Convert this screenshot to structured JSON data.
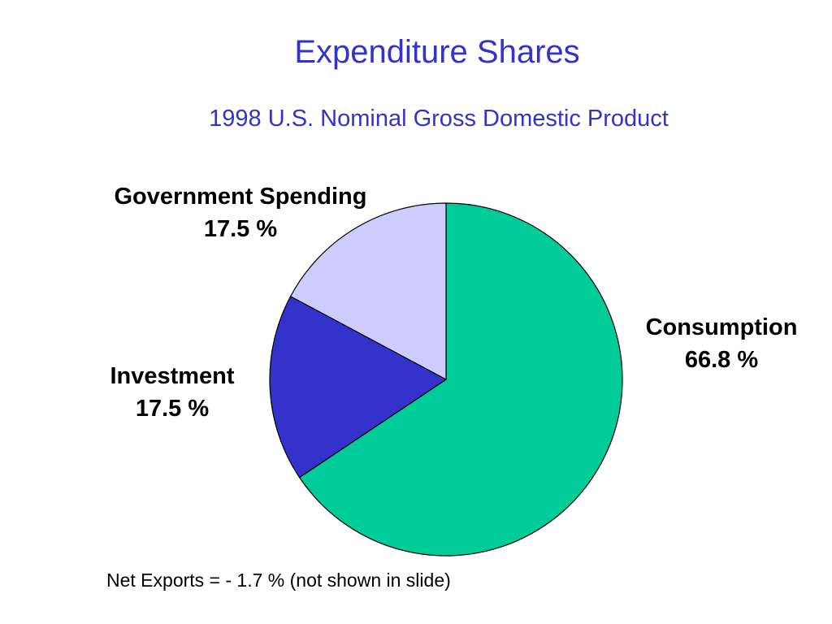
{
  "slide": {
    "title": "Expenditure Shares",
    "subtitle": "1998 U.S. Nominal Gross Domestic Product",
    "footnote": "Net Exports = - 1.7 % (not shown in slide)"
  },
  "chart_data": {
    "type": "pie",
    "title": "Expenditure Shares",
    "subtitle": "1998 U.S. Nominal Gross Domestic Product",
    "unit": "%",
    "slices": [
      {
        "key": "consumption",
        "name": "Consumption",
        "value": 66.8,
        "label": "66.8 %",
        "color": "#00cc99"
      },
      {
        "key": "investment",
        "name": "Investment",
        "value": 17.5,
        "label": "17.5 %",
        "color": "#3333cc"
      },
      {
        "key": "government",
        "name": "Government Spending",
        "value": 17.5,
        "label": "17.5 %",
        "color": "#ccccff"
      }
    ],
    "legend": "none",
    "notes": [
      "Net Exports = - 1.7 % (not shown in slide)"
    ]
  }
}
